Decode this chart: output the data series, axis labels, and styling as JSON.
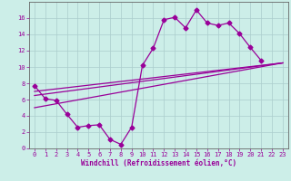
{
  "xlabel": "Windchill (Refroidissement éolien,°C)",
  "bg_color": "#cceee8",
  "line_color": "#990099",
  "xlim": [
    -0.5,
    23.5
  ],
  "ylim": [
    0,
    18
  ],
  "yticks": [
    0,
    2,
    4,
    6,
    8,
    10,
    12,
    14,
    16
  ],
  "xticks": [
    0,
    1,
    2,
    3,
    4,
    5,
    6,
    7,
    8,
    9,
    10,
    11,
    12,
    13,
    14,
    15,
    16,
    17,
    18,
    19,
    20,
    21,
    22,
    23
  ],
  "main_x": [
    0,
    1,
    2,
    3,
    4,
    5,
    6,
    7,
    8,
    9,
    10,
    11,
    12,
    13,
    14,
    15,
    16,
    17,
    18,
    19,
    20,
    21,
    22,
    23
  ],
  "main_y": [
    7.7,
    6.1,
    5.9,
    4.2,
    2.6,
    2.8,
    2.9,
    1.1,
    0.5,
    2.6,
    10.2,
    12.3,
    15.8,
    16.1,
    14.8,
    17.0,
    15.4,
    15.1,
    15.4,
    14.1,
    12.4,
    10.8,
    null,
    null
  ],
  "trend_lines": [
    {
      "x": [
        0,
        23
      ],
      "y": [
        6.5,
        10.5
      ]
    },
    {
      "x": [
        0,
        23
      ],
      "y": [
        7.0,
        10.5
      ]
    },
    {
      "x": [
        0,
        23
      ],
      "y": [
        5.0,
        10.5
      ]
    }
  ],
  "grid_color": "#aacccc",
  "tick_fontsize": 5.0,
  "xlabel_fontsize": 5.5
}
